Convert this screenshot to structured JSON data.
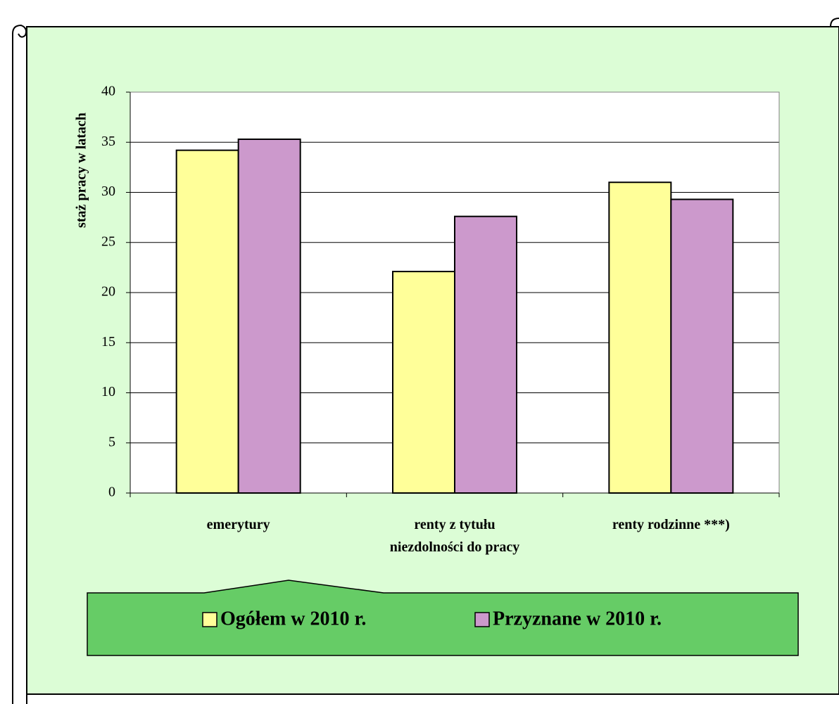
{
  "chart_data": {
    "type": "bar",
    "y_label": "staż pracy w latach",
    "categories": [
      "emerytury",
      "renty z tytułu\nniezdolności do pracy",
      "renty rodzinne ***)"
    ],
    "series": [
      {
        "name": "Ogółem w 2010 r.",
        "color": "#ffff99",
        "values": [
          34.2,
          22.1,
          31.0
        ]
      },
      {
        "name": "Przyznane w 2010 r.",
        "color": "#cc99cc",
        "values": [
          35.3,
          27.6,
          29.3
        ]
      }
    ],
    "ylim": [
      0,
      40
    ],
    "yticks": [
      0,
      5,
      10,
      15,
      20,
      25,
      30,
      35,
      40
    ],
    "grid": true
  }
}
